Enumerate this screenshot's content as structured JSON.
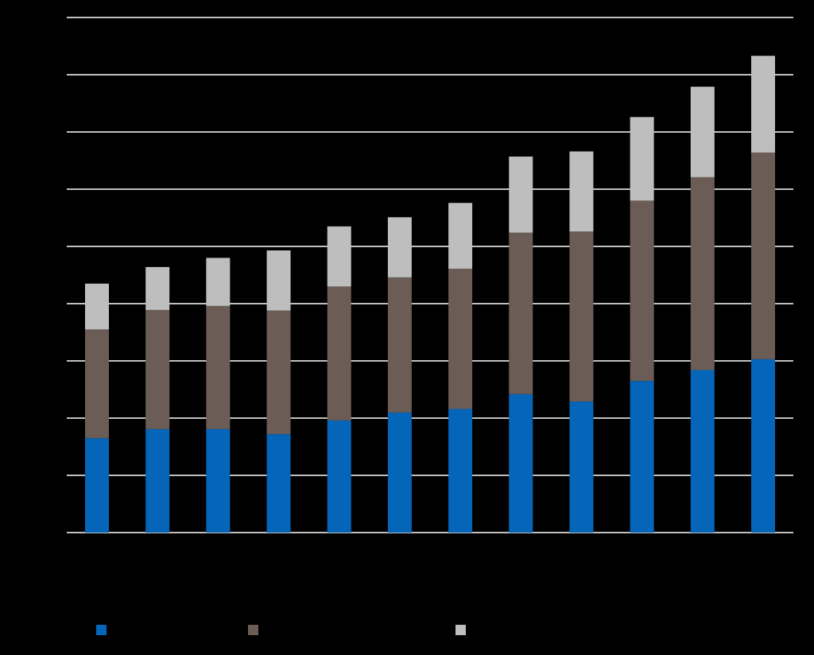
{
  "chart_data": {
    "type": "bar",
    "stacked": true,
    "title": "",
    "xlabel": "",
    "ylabel": "",
    "ylim": [
      0,
      9
    ],
    "yticks": [
      0,
      1,
      2,
      3,
      4,
      5,
      6,
      7,
      8,
      9
    ],
    "grid": true,
    "legend_position": "bottom",
    "categories": [
      "",
      "",
      "",
      "",
      "",
      "",
      "",
      "",
      "",
      "",
      "",
      ""
    ],
    "series": [
      {
        "name": "",
        "color": "#0565B8",
        "values": [
          1.65,
          1.81,
          1.81,
          1.72,
          1.96,
          2.1,
          2.16,
          2.42,
          2.29,
          2.65,
          2.84,
          3.03
        ]
      },
      {
        "name": "",
        "color": "#6B5D56",
        "values": [
          1.9,
          2.08,
          2.15,
          2.16,
          2.34,
          2.36,
          2.45,
          2.82,
          2.97,
          3.15,
          3.37,
          3.61
        ]
      },
      {
        "name": "",
        "color": "#BEBEBE",
        "values": [
          0.8,
          0.75,
          0.84,
          1.05,
          1.05,
          1.05,
          1.15,
          1.33,
          1.4,
          1.46,
          1.58,
          1.69
        ]
      }
    ]
  },
  "style": {
    "background": "#000000",
    "gridline_color": "#FFFFFF",
    "axis_color": "#FFFFFF"
  }
}
